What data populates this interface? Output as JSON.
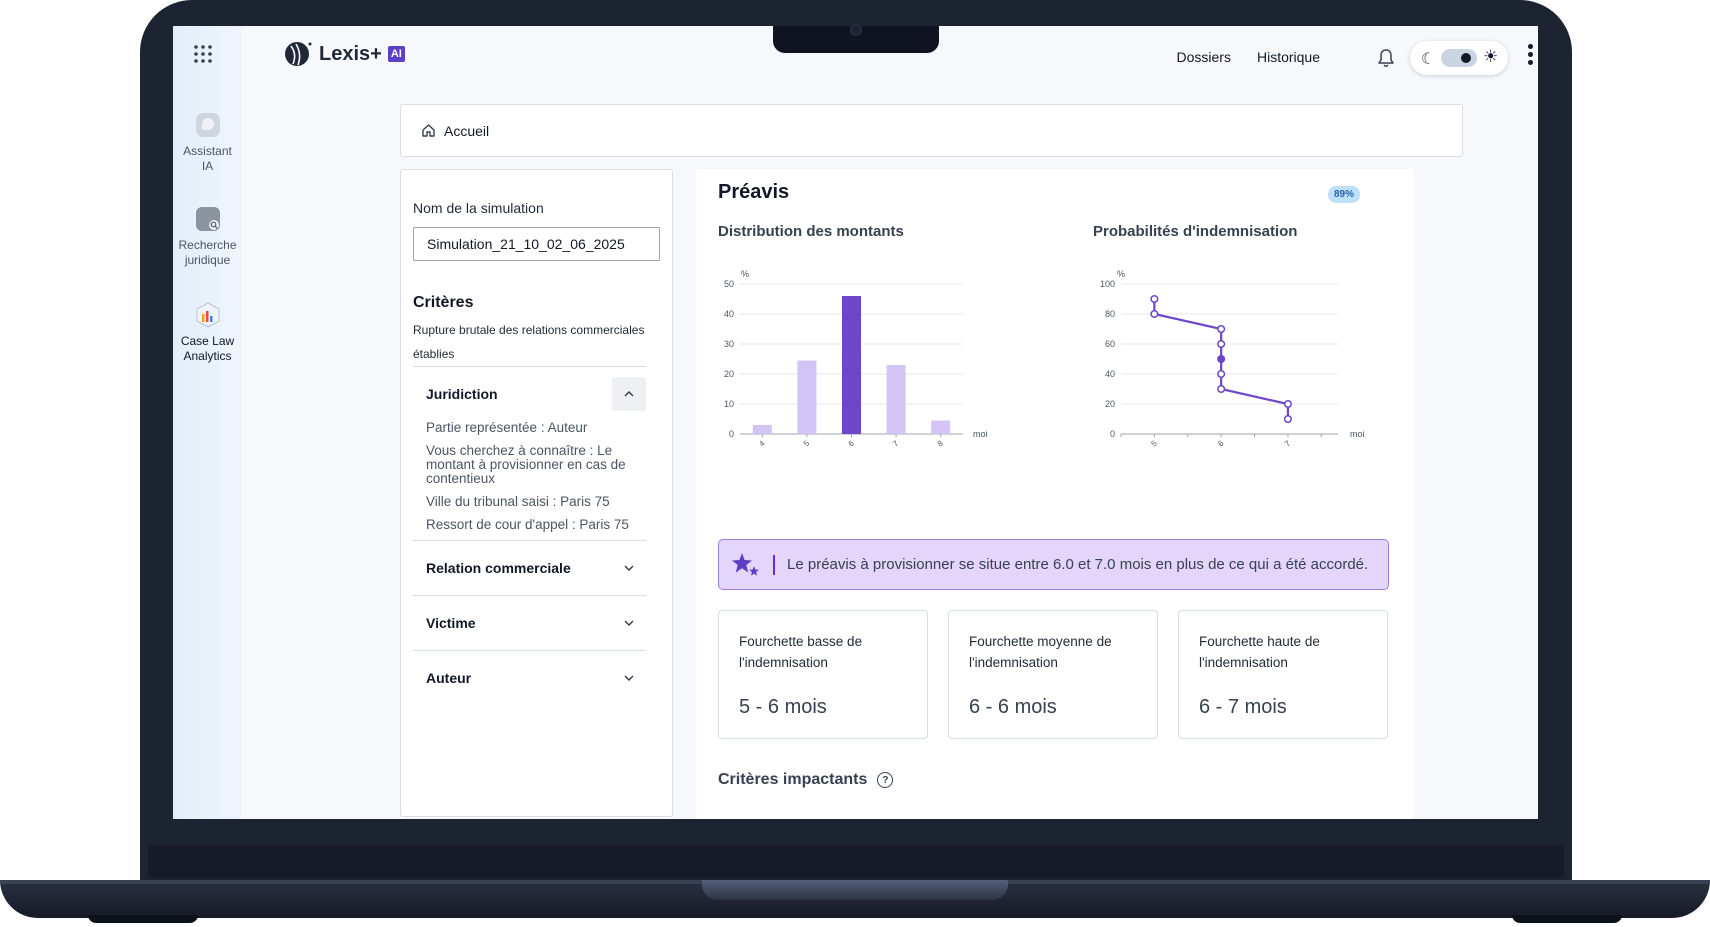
{
  "app": {
    "logo_text": "Lexis+",
    "logo_badge": "AI",
    "brand_color": "#5b3fc4"
  },
  "header": {
    "nav": [
      "Dossiers",
      "Historique"
    ]
  },
  "rail": {
    "items": [
      {
        "label_1": "Assistant",
        "label_2": "IA",
        "icon": "assistant-icon"
      },
      {
        "label_1": "Recherche",
        "label_2": "juridique",
        "icon": "legal-search-icon"
      },
      {
        "label_1": "Case Law",
        "label_2": "Analytics",
        "icon": "analytics-icon"
      }
    ]
  },
  "breadcrumb": {
    "home_label": "Accueil"
  },
  "left_panel": {
    "sim_name_label": "Nom de la simulation",
    "sim_name_value": "Simulation_21_10_02_06_2025",
    "criteria_title": "Critères",
    "criteria_desc": "Rupture brutale des relations commerciales établies",
    "accordions": [
      {
        "title": "Juridiction",
        "open": true,
        "lines": [
          "Partie représentée : Auteur",
          "Vous cherchez à connaître : Le montant à provisionner en cas de contentieux",
          "Ville du tribunal saisi : Paris 75",
          "Ressort de cour d'appel : Paris 75"
        ]
      },
      {
        "title": "Relation commerciale",
        "open": false
      },
      {
        "title": "Victime",
        "open": false
      },
      {
        "title": "Auteur",
        "open": false
      }
    ]
  },
  "main": {
    "title": "Préavis",
    "badge": "89%",
    "insight": "Le préavis à provisionner se situe entre 6.0 et 7.0 mois en plus de ce qui a été accordé.",
    "cards": [
      {
        "label_1": "Fourchette basse de",
        "label_2": "l'indemnisation",
        "value": "5 - 6 mois"
      },
      {
        "label_1": "Fourchette moyenne de",
        "label_2": "l'indemnisation",
        "value": "6 - 6 mois"
      },
      {
        "label_1": "Fourchette haute de",
        "label_2": "l'indemnisation",
        "value": "6 - 7 mois"
      }
    ],
    "impact_title": "Critères impactants",
    "help_glyph": "?"
  },
  "chart_data": [
    {
      "type": "bar",
      "title": "Distribution des montants",
      "ylabel": "%",
      "xlabel": "moi",
      "categories": [
        "4",
        "5",
        "6",
        "7",
        "8"
      ],
      "values": [
        3,
        24.5,
        46,
        23,
        4.5
      ],
      "highlight_index": 2,
      "ylim": [
        0,
        50
      ],
      "yticks": [
        0,
        10,
        20,
        30,
        40,
        50
      ],
      "colors": {
        "bar": "#d4c4f5",
        "highlight": "#6e46c9"
      },
      "grid": true
    },
    {
      "type": "line",
      "title": "Probabilités d'indemnisation",
      "ylabel": "%",
      "xlabel": "moi",
      "xticks": [
        "5",
        "6",
        "7"
      ],
      "ylim": [
        0,
        100
      ],
      "yticks": [
        0,
        20,
        40,
        60,
        80,
        100
      ],
      "xlim": [
        4.5,
        7.75
      ],
      "points": [
        {
          "x": 5,
          "y": 90
        },
        {
          "x": 5,
          "y": 80
        },
        {
          "x": 6,
          "y": 70
        },
        {
          "x": 6,
          "y": 60
        },
        {
          "x": 6,
          "y": 50
        },
        {
          "x": 6,
          "y": 40
        },
        {
          "x": 6,
          "y": 30
        },
        {
          "x": 7,
          "y": 20
        },
        {
          "x": 7,
          "y": 10
        }
      ],
      "filled_point_index": 4,
      "colors": {
        "line": "#6e46c9"
      },
      "grid": true
    }
  ]
}
